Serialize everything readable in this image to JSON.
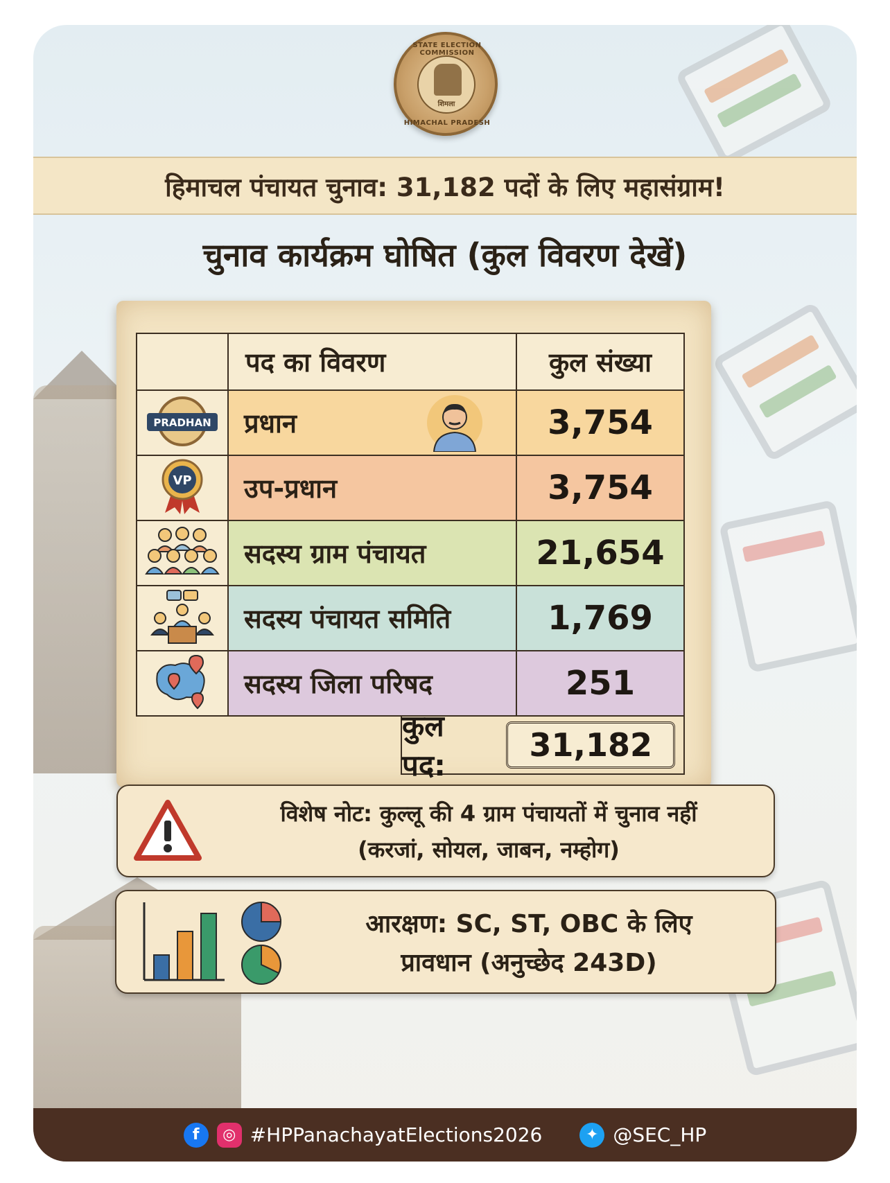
{
  "seal": {
    "top_text": "STATE ELECTION COMMISSION",
    "bottom_text": "HIMACHAL PRADESH",
    "inner_text": "शिमला"
  },
  "banner": {
    "title": "हिमाचल पंचायत चुनाव: 31,182 पदों के लिए महासंग्राम!"
  },
  "subtitle": "चुनाव कार्यक्रम घोषित (कुल विवरण देखें)",
  "table": {
    "header": {
      "post": "पद का विवरण",
      "count": "कुल संख्या"
    },
    "rows": [
      {
        "icon": "pradhan-badge-icon",
        "badge": "PRADHAN",
        "name": "प्रधान",
        "count": "3,754",
        "color": "#f8d79e"
      },
      {
        "icon": "vp-medal-icon",
        "badge": "VP",
        "name": "उप-प्रधान",
        "count": "3,754",
        "color": "#f5c6a0"
      },
      {
        "icon": "group-people-icon",
        "name": "सदस्य ग्राम पंचायत",
        "count": "21,654",
        "color": "#dbe4b2"
      },
      {
        "icon": "meeting-icon",
        "name": "सदस्य पंचायत समिति",
        "count": "1,769",
        "color": "#c9e1d9"
      },
      {
        "icon": "map-pin-icon",
        "name": "सदस्य जिला परिषद",
        "count": "251",
        "color": "#ddc9dd"
      }
    ],
    "total_label": "कुल पद:",
    "total_value": "31,182"
  },
  "note": {
    "line1": "विशेष नोट: कुल्लू की 4 ग्राम पंचायतों में चुनाव नहीं",
    "line2": "(करजां, सोयल, जाबन, नम्होग)"
  },
  "reservation": {
    "line1": "आरक्षण: SC, ST, OBC के लिए",
    "line2": "प्रावधान (अनुच्छेद 243D)"
  },
  "footer": {
    "hashtag": "#HPPanachayatElections2026",
    "handle": "@SEC_HP"
  },
  "colors": {
    "footer_bg": "#4b2f22",
    "banner_bg": "#f4e6c6",
    "facebook": "#1877f2",
    "instagram": "#e1306c",
    "twitter": "#1da1f2"
  }
}
